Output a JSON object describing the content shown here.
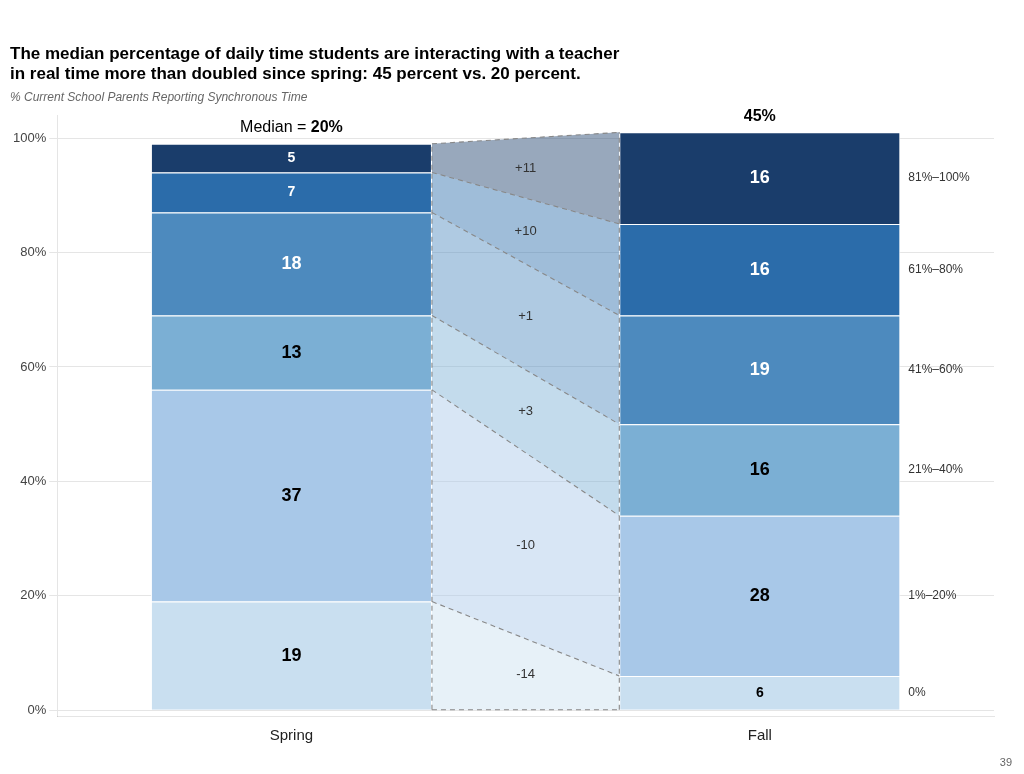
{
  "chart_data": {
    "type": "bar",
    "title": [
      "The median percentage of daily time students are interacting with a teacher",
      "in real time more than doubled since spring: 45 percent vs. 20 percent."
    ],
    "subtitle": "% Current School Parents Reporting Synchronous Time",
    "categories": [
      "Spring",
      "Fall"
    ],
    "series": [
      {
        "name": "0%",
        "color": "#c9dff0",
        "values": [
          19,
          6
        ]
      },
      {
        "name": "1%–20%",
        "color": "#a8c8e8",
        "values": [
          37,
          28
        ]
      },
      {
        "name": "21%–40%",
        "color": "#7bafd4",
        "values": [
          13,
          16
        ]
      },
      {
        "name": "41%–60%",
        "color": "#4d8abe",
        "values": [
          18,
          19
        ]
      },
      {
        "name": "61%–80%",
        "color": "#2b6caa",
        "values": [
          7,
          16
        ]
      },
      {
        "name": "81%–100%",
        "color": "#1a3d6b",
        "values": [
          5,
          16
        ]
      }
    ],
    "stacked": true,
    "data_labels": true,
    "grid": true,
    "ylim": [
      -1,
      104
    ],
    "yticks": [
      {
        "value": 0,
        "label": "0%"
      },
      {
        "value": 20,
        "label": "20%"
      },
      {
        "value": 40,
        "label": "40%"
      },
      {
        "value": 60,
        "label": "60%"
      },
      {
        "value": 80,
        "label": "80%"
      },
      {
        "value": 100,
        "label": "100%"
      }
    ],
    "change_labels": [
      "-14",
      "-10",
      "+3",
      "+1",
      "+10",
      "+11"
    ],
    "medians": [
      {
        "category": "Spring",
        "prefix": "Median = ",
        "value": 20,
        "label": "20%"
      },
      {
        "category": "Fall",
        "value": 45,
        "label": "45%"
      }
    ],
    "page_number": "39"
  }
}
